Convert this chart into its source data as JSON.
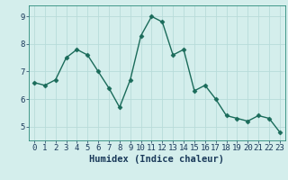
{
  "x": [
    0,
    1,
    2,
    3,
    4,
    5,
    6,
    7,
    8,
    9,
    10,
    11,
    12,
    13,
    14,
    15,
    16,
    17,
    18,
    19,
    20,
    21,
    22,
    23
  ],
  "y": [
    6.6,
    6.5,
    6.7,
    7.5,
    7.8,
    7.6,
    7.0,
    6.4,
    5.7,
    6.7,
    8.3,
    9.0,
    8.8,
    7.6,
    7.8,
    6.3,
    6.5,
    6.0,
    5.4,
    5.3,
    5.2,
    5.4,
    5.3,
    4.8
  ],
  "line_color": "#1a6b5a",
  "marker": "D",
  "marker_size": 2.5,
  "bg_color": "#d4eeec",
  "grid_color": "#b8dbd9",
  "xlabel": "Humidex (Indice chaleur)",
  "xlabel_fontsize": 7.5,
  "tick_fontsize": 6.5,
  "ylim": [
    4.5,
    9.4
  ],
  "xlim": [
    -0.5,
    23.5
  ],
  "yticks": [
    5,
    6,
    7,
    8,
    9
  ],
  "xticks": [
    0,
    1,
    2,
    3,
    4,
    5,
    6,
    7,
    8,
    9,
    10,
    11,
    12,
    13,
    14,
    15,
    16,
    17,
    18,
    19,
    20,
    21,
    22,
    23
  ],
  "linewidth": 1.0,
  "spine_color": "#2a8a7a",
  "text_color": "#1a3a5a"
}
